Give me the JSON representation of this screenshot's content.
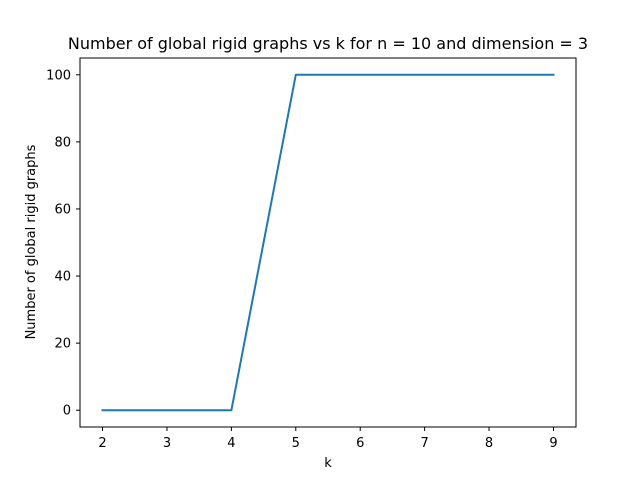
{
  "chart_data": {
    "type": "line",
    "title": "Number of global rigid graphs vs k for n = 10 and dimension = 3",
    "xlabel": "k",
    "ylabel": "Number of global rigid graphs",
    "x": [
      2,
      3,
      4,
      5,
      6,
      7,
      8,
      9
    ],
    "series": [
      {
        "values": [
          0,
          0,
          0,
          100,
          100,
          100,
          100,
          100
        ],
        "color": "#1f77b4"
      }
    ],
    "xlim": [
      1.65,
      9.35
    ],
    "ylim": [
      -5,
      105
    ],
    "xticks": [
      2,
      3,
      4,
      5,
      6,
      7,
      8,
      9
    ],
    "yticks": [
      0,
      20,
      40,
      60,
      80,
      100
    ],
    "grid": false,
    "legend": "none"
  }
}
